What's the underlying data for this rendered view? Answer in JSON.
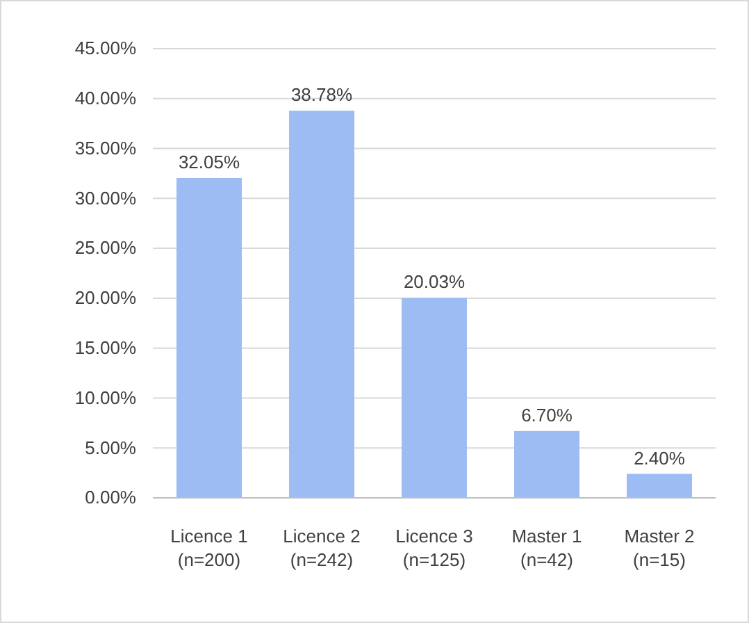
{
  "chart_data": {
    "type": "bar",
    "categories": [
      "Licence 1\n(n=200)",
      "Licence 2\n(n=242)",
      "Licence 3\n(n=125)",
      "Master 1\n(n=42)",
      "Master 2\n(n=15)"
    ],
    "values": [
      32.05,
      38.78,
      20.03,
      6.7,
      2.4
    ],
    "value_labels": [
      "32.05%",
      "38.78%",
      "20.03%",
      "6.70%",
      "2.40%"
    ],
    "color": "#9dbcf3",
    "ylim": [
      0,
      45
    ],
    "yticks": [
      {
        "value": 0,
        "label": "0.00%"
      },
      {
        "value": 5,
        "label": "5.00%"
      },
      {
        "value": 10,
        "label": "10.00%"
      },
      {
        "value": 15,
        "label": "15.00%"
      },
      {
        "value": 20,
        "label": "20.00%"
      },
      {
        "value": 25,
        "label": "25.00%"
      },
      {
        "value": 30,
        "label": "30.00%"
      },
      {
        "value": 35,
        "label": "35.00%"
      },
      {
        "value": 40,
        "label": "40.00%"
      },
      {
        "value": 45,
        "label": "45.00%"
      }
    ],
    "grid": "y"
  }
}
